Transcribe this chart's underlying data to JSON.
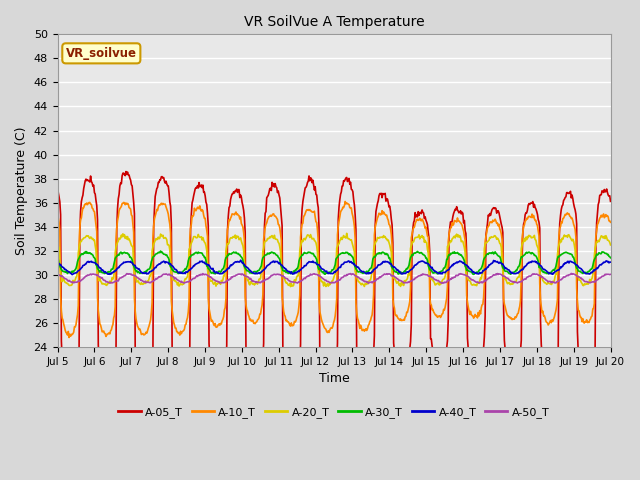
{
  "title": "VR SoilVue A Temperature",
  "xlabel": "Time",
  "ylabel": "Soil Temperature (C)",
  "ylim": [
    24,
    50
  ],
  "yticks": [
    24,
    26,
    28,
    30,
    32,
    34,
    36,
    38,
    40,
    42,
    44,
    46,
    48,
    50
  ],
  "background_color": "#d8d8d8",
  "plot_bg_color": "#e8e8e8",
  "legend_label": "VR_soilvue",
  "series_order": [
    "A-05_T",
    "A-10_T",
    "A-20_T",
    "A-30_T",
    "A-40_T",
    "A-50_T"
  ],
  "series": {
    "A-05_T": {
      "color": "#cc0000",
      "lw": 1.2
    },
    "A-10_T": {
      "color": "#ff8800",
      "lw": 1.2
    },
    "A-20_T": {
      "color": "#ddcc00",
      "lw": 1.2
    },
    "A-30_T": {
      "color": "#00bb00",
      "lw": 1.2
    },
    "A-40_T": {
      "color": "#0000cc",
      "lw": 1.2
    },
    "A-50_T": {
      "color": "#aa44aa",
      "lw": 1.2
    }
  },
  "a05_base": 29.0,
  "a05_amp": 10.0,
  "a10_base": 30.5,
  "a10_amp": 5.5,
  "a20_base": 31.2,
  "a20_amp": 2.0,
  "a30_base": 31.0,
  "a30_amp": 0.85,
  "a40_base": 30.6,
  "a40_amp": 0.5,
  "a50_base": 29.7,
  "a50_amp": 0.35
}
